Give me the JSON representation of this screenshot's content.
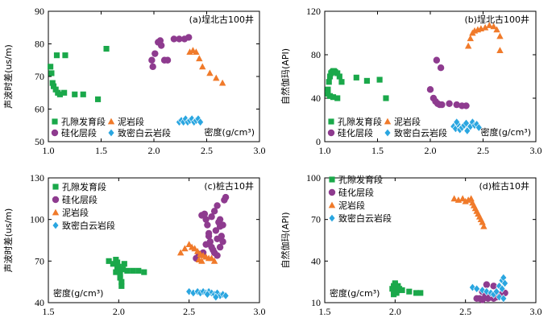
{
  "chart_data": [
    {
      "type": "scatter",
      "title": "(a)埕北古100井",
      "xlabel": "密度(g/cm³)",
      "ylabel": "声波时差(us/m)",
      "xlim": [
        1.0,
        3.0
      ],
      "ylim": [
        50,
        90
      ],
      "xticks": [
        "1.0",
        "1.5",
        "2.0",
        "2.5",
        "3.0"
      ],
      "yticks": [
        "50",
        "60",
        "70",
        "80",
        "90"
      ],
      "legend": "bottom-left, two columns",
      "series": [
        {
          "name": "孔隙发育段",
          "marker": "square",
          "color": "#1aa84a",
          "x": [
            1.02,
            1.03,
            1.04,
            1.05,
            1.07,
            1.09,
            1.11,
            1.15,
            1.25,
            1.33,
            1.47,
            1.08,
            1.16,
            1.55
          ],
          "y": [
            73,
            71,
            68,
            67,
            66,
            65,
            64.5,
            65,
            64.5,
            64.5,
            63,
            76.5,
            76.5,
            78.5
          ]
        },
        {
          "name": "泥岩段",
          "marker": "triangle",
          "color": "#f07a2a",
          "x": [
            2.34,
            2.37,
            2.4,
            2.43,
            2.46,
            2.53,
            2.59,
            2.65
          ],
          "y": [
            77.5,
            78,
            77.5,
            75.5,
            73,
            71,
            69.5,
            68
          ]
        },
        {
          "name": "硅化层段",
          "marker": "circle",
          "color": "#8e3b8f",
          "x": [
            1.98,
            1.99,
            2.01,
            2.04,
            2.07,
            2.1,
            2.13,
            2.19,
            2.24,
            2.29,
            2.33,
            2.06
          ],
          "y": [
            75,
            73,
            77,
            80.5,
            79.5,
            75,
            75,
            81.5,
            81.5,
            81.5,
            82,
            81
          ]
        },
        {
          "name": "致密白云岩段",
          "marker": "diamond",
          "color": "#2aa6e0",
          "x": [
            2.24,
            2.26,
            2.28,
            2.3,
            2.32,
            2.34,
            2.36,
            2.38,
            2.4,
            2.42,
            2.44
          ],
          "y": [
            56,
            56.5,
            56,
            57,
            56,
            56.5,
            57,
            56,
            56.5,
            57,
            56
          ]
        }
      ]
    },
    {
      "type": "scatter",
      "title": "(b)埕北古100井",
      "xlabel": "密度(g/cm³)",
      "ylabel": "自然伽玛(API)",
      "xlim": [
        1.0,
        3.0
      ],
      "ylim": [
        0,
        120
      ],
      "xticks": [
        "1.0",
        "1.5",
        "2.0",
        "2.5",
        "3.0"
      ],
      "yticks": [
        "0",
        "40",
        "80",
        "120"
      ],
      "legend": "bottom-left, two columns",
      "series": [
        {
          "name": "孔隙发育段",
          "marker": "square",
          "color": "#1aa84a",
          "x": [
            1.03,
            1.04,
            1.05,
            1.06,
            1.07,
            1.08,
            1.09,
            1.1,
            1.12,
            1.14,
            1.16,
            1.03,
            1.05,
            1.08,
            1.12,
            1.3,
            1.4,
            1.52,
            1.58
          ],
          "y": [
            48,
            55,
            60,
            63,
            64,
            65,
            65,
            64,
            63,
            60,
            55,
            44,
            42,
            41,
            40,
            59,
            56,
            57,
            40
          ]
        },
        {
          "name": "泥岩段",
          "marker": "triangle",
          "color": "#f07a2a",
          "x": [
            2.36,
            2.38,
            2.4,
            2.42,
            2.45,
            2.48,
            2.52,
            2.56,
            2.6,
            2.63,
            2.66,
            2.66
          ],
          "y": [
            88,
            95,
            100,
            102,
            103,
            104,
            105,
            107,
            106,
            103,
            97,
            84
          ]
        },
        {
          "name": "硅化层段",
          "marker": "circle",
          "color": "#8e3b8f",
          "x": [
            2.0,
            2.03,
            2.05,
            2.07,
            2.09,
            2.11,
            2.18,
            2.25,
            2.3,
            2.34,
            2.06,
            2.1
          ],
          "y": [
            48,
            40,
            37,
            35,
            34,
            34,
            35,
            34,
            33,
            33,
            75,
            68
          ]
        },
        {
          "name": "致密白云岩段",
          "marker": "diamond",
          "color": "#2aa6e0",
          "x": [
            2.22,
            2.24,
            2.26,
            2.28,
            2.3,
            2.32,
            2.34,
            2.36,
            2.38,
            2.4,
            2.42,
            2.44,
            2.46,
            2.25,
            2.35
          ],
          "y": [
            14,
            12,
            16,
            11,
            13,
            15,
            17,
            12,
            14,
            18,
            15,
            16,
            13,
            18,
            10
          ]
        }
      ]
    },
    {
      "type": "scatter",
      "title": "(c)桩古10井",
      "xlabel": "密度(g/cm³)",
      "ylabel": "声波时差(us/m)",
      "xlim": [
        1.5,
        3.0
      ],
      "ylim": [
        40,
        130
      ],
      "xticks": [
        "1.5",
        "2.0",
        "2.5",
        "3.0"
      ],
      "yticks": [
        "40",
        "70",
        "100",
        "130"
      ],
      "legend": "top-left, one column",
      "series": [
        {
          "name": "孔隙发育段",
          "marker": "square",
          "color": "#1aa84a",
          "x": [
            1.93,
            1.96,
            1.98,
            1.99,
            2.0,
            2.0,
            2.01,
            2.01,
            2.02,
            2.02,
            1.99,
            1.98,
            2.03,
            2.04,
            2.06,
            2.1,
            2.14,
            2.18
          ],
          "y": [
            70,
            68,
            71,
            69,
            66,
            63,
            60,
            58,
            55,
            52,
            65,
            62,
            64,
            68,
            63,
            63,
            63,
            62
          ]
        },
        {
          "name": "硅化层段",
          "marker": "circle",
          "color": "#8e3b8f",
          "x": [
            2.55,
            2.57,
            2.59,
            2.61,
            2.62,
            2.63,
            2.64,
            2.65,
            2.66,
            2.67,
            2.68,
            2.69,
            2.7,
            2.71,
            2.72,
            2.73,
            2.74,
            2.75,
            2.76,
            2.62,
            2.64,
            2.66,
            2.68,
            2.7,
            2.72,
            2.74,
            2.6,
            2.7,
            2.72
          ],
          "y": [
            72,
            75,
            103,
            104,
            100,
            96,
            88,
            84,
            80,
            78,
            76,
            92,
            86,
            98,
            95,
            88,
            96,
            114,
            116,
            82,
            90,
            102,
            106,
            110,
            80,
            84,
            76,
            74,
            100
          ]
        },
        {
          "name": "泥岩段",
          "marker": "triangle",
          "color": "#f07a2a",
          "x": [
            2.44,
            2.47,
            2.5,
            2.52,
            2.54,
            2.56,
            2.58,
            2.6,
            2.62,
            2.64,
            2.66,
            2.68,
            2.57,
            2.59
          ],
          "y": [
            76,
            79,
            82,
            80,
            79,
            77,
            75,
            74,
            73,
            72,
            72,
            70,
            71,
            70
          ]
        },
        {
          "name": "致密白云岩段",
          "marker": "diamond",
          "color": "#2aa6e0",
          "x": [
            2.5,
            2.53,
            2.56,
            2.58,
            2.6,
            2.62,
            2.64,
            2.66,
            2.68,
            2.7,
            2.72,
            2.74,
            2.76,
            2.63,
            2.69
          ],
          "y": [
            48,
            47,
            48,
            47,
            48,
            47,
            48,
            47,
            46,
            47,
            45,
            46,
            45,
            46,
            44
          ]
        }
      ]
    },
    {
      "type": "scatter",
      "title": "(d)桩古10井",
      "xlabel": "密度(g/cm³)",
      "ylabel": "自然伽玛(API)",
      "xlim": [
        1.5,
        3.0
      ],
      "ylim": [
        10,
        100
      ],
      "xticks": [
        "1.5",
        "2.0",
        "2.5",
        "3.0"
      ],
      "yticks": [
        "10",
        "40",
        "70",
        "100"
      ],
      "legend": "top-left, one column",
      "series": [
        {
          "name": "孔隙发育段",
          "marker": "square",
          "color": "#1aa84a",
          "x": [
            1.98,
            1.99,
            2.0,
            2.0,
            2.01,
            2.01,
            2.02,
            2.02,
            2.03,
            2.05,
            2.1,
            2.15,
            2.18,
            1.99,
            2.0
          ],
          "y": [
            20,
            22,
            18,
            23,
            21,
            17,
            19,
            22,
            20,
            19,
            18,
            17,
            17,
            16,
            24
          ]
        },
        {
          "name": "硅化层段",
          "marker": "circle",
          "color": "#8e3b8f",
          "x": [
            2.58,
            2.6,
            2.62,
            2.64,
            2.66,
            2.68,
            2.7,
            2.72,
            2.74,
            2.76,
            2.78,
            2.65,
            2.7,
            2.62
          ],
          "y": [
            13,
            13,
            12,
            14,
            13,
            15,
            13,
            14,
            16,
            15,
            17,
            23,
            22,
            18
          ]
        },
        {
          "name": "泥岩段",
          "marker": "triangle",
          "color": "#f07a2a",
          "x": [
            2.42,
            2.45,
            2.48,
            2.5,
            2.52,
            2.54,
            2.55,
            2.56,
            2.57,
            2.58,
            2.59,
            2.6,
            2.61,
            2.62,
            2.63
          ],
          "y": [
            85,
            84,
            85,
            83,
            84,
            85,
            82,
            80,
            78,
            76,
            74,
            72,
            70,
            68,
            65
          ]
        },
        {
          "name": "致密白云岩段",
          "marker": "diamond",
          "color": "#2aa6e0",
          "x": [
            2.55,
            2.58,
            2.62,
            2.65,
            2.68,
            2.7,
            2.72,
            2.74,
            2.76,
            2.77,
            2.78,
            2.76,
            2.74,
            2.77
          ],
          "y": [
            21,
            20,
            19,
            18,
            17,
            16,
            18,
            22,
            26,
            28,
            24,
            20,
            14,
            13
          ]
        }
      ]
    }
  ]
}
